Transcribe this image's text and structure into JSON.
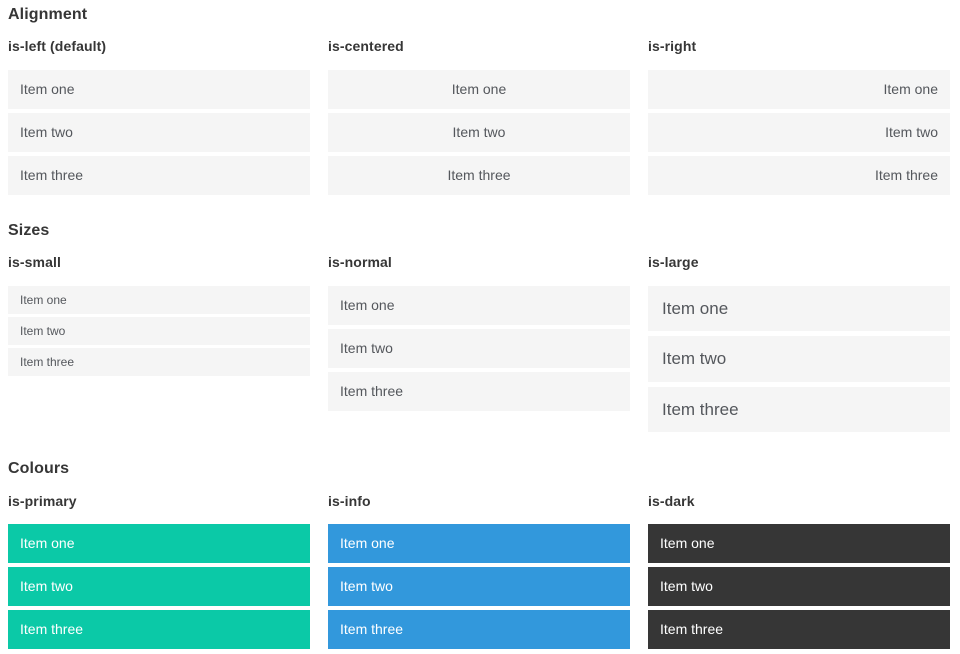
{
  "colors": {
    "item_bg": "#f5f5f5",
    "item_text": "#54575c",
    "heading_text": "#363636",
    "primary": "#0bc9a7",
    "info": "#3298dc",
    "dark": "#363636",
    "colored_item_text": "#ffffff"
  },
  "sections": [
    {
      "title": "Alignment",
      "columns": [
        {
          "label": "is-left (default)",
          "items": [
            "Item one",
            "Item two",
            "Item three"
          ]
        },
        {
          "label": "is-centered",
          "items": [
            "Item one",
            "Item two",
            "Item three"
          ]
        },
        {
          "label": "is-right",
          "items": [
            "Item one",
            "Item two",
            "Item three"
          ]
        }
      ]
    },
    {
      "title": "Sizes",
      "columns": [
        {
          "label": "is-small",
          "items": [
            "Item one",
            "Item two",
            "Item three"
          ]
        },
        {
          "label": "is-normal",
          "items": [
            "Item one",
            "Item two",
            "Item three"
          ]
        },
        {
          "label": "is-large",
          "items": [
            "Item one",
            "Item two",
            "Item three"
          ]
        }
      ]
    },
    {
      "title": "Colours",
      "columns": [
        {
          "label": "is-primary",
          "items": [
            "Item one",
            "Item two",
            "Item three"
          ]
        },
        {
          "label": "is-info",
          "items": [
            "Item one",
            "Item two",
            "Item three"
          ]
        },
        {
          "label": "is-dark",
          "items": [
            "Item one",
            "Item two",
            "Item three"
          ]
        }
      ]
    }
  ]
}
